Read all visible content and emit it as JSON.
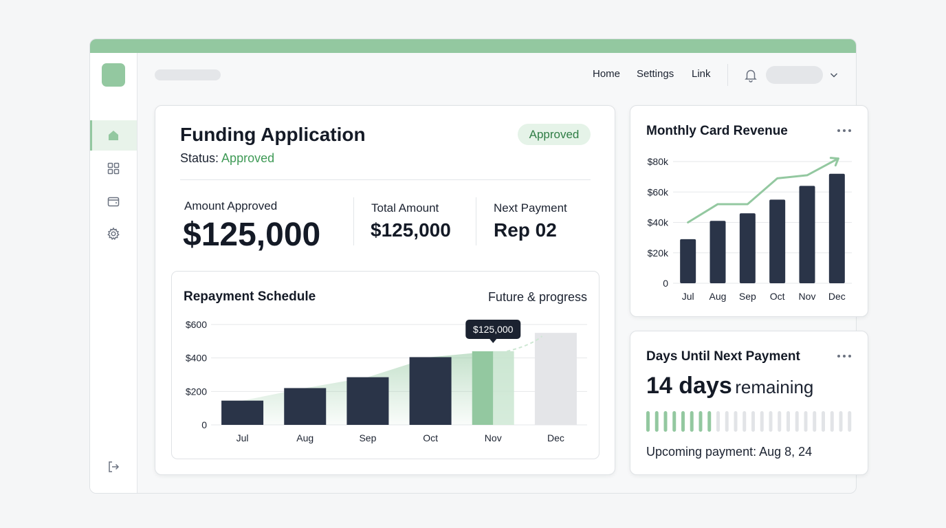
{
  "header": {
    "nav": [
      "Home",
      "Settings",
      "Link"
    ]
  },
  "sidebar": {
    "items": [
      {
        "icon": "home-icon",
        "active": true
      },
      {
        "icon": "grid-icon",
        "active": false
      },
      {
        "icon": "wallet-icon",
        "active": false
      },
      {
        "icon": "gear-icon",
        "active": false
      }
    ],
    "logout_icon": "logout-icon"
  },
  "colors": {
    "accent": "#93c8a0",
    "accent_text": "#3f9a56",
    "bar_dark": "#2a3448",
    "bar_future": "#e4e5e8"
  },
  "funding": {
    "title": "Funding Application",
    "status_label": "Status:",
    "status_value": "Approved",
    "badge": "Approved",
    "amount_label": "Amount Approved",
    "amount_value": "$125,000",
    "total_label": "Total Amount",
    "total_value": "$125,000",
    "next_label": "Next Payment",
    "next_value": "Rep 02"
  },
  "repayment": {
    "title": "Repayment Schedule",
    "subtitle": "Future & progress",
    "tooltip": "$125,000"
  },
  "revenue": {
    "title": "Monthly Card Revenue"
  },
  "days": {
    "title": "Days Until Next Payment",
    "count": "14 days",
    "suffix": "remaining",
    "progress_filled": 8,
    "progress_total": 24,
    "upcoming": "Upcoming payment: Aug 8, 24"
  },
  "chart_data": [
    {
      "type": "bar",
      "title": "Repayment Schedule",
      "categories": [
        "Jul",
        "Aug",
        "Sep",
        "Oct",
        "Nov",
        "Dec"
      ],
      "values": [
        145,
        220,
        285,
        405,
        440,
        550
      ],
      "bar_state": [
        "paid",
        "paid",
        "paid",
        "paid",
        "current",
        "future"
      ],
      "yticks": [
        "0",
        "$200",
        "$400",
        "$600"
      ],
      "ylim": [
        0,
        600
      ],
      "trend": [
        145,
        220,
        285,
        405,
        440,
        475,
        550
      ],
      "grid": true
    },
    {
      "type": "bar",
      "title": "Monthly Card Revenue",
      "categories": [
        "Jul",
        "Aug",
        "Sep",
        "Oct",
        "Nov",
        "Dec"
      ],
      "values": [
        29,
        41,
        46,
        55,
        64,
        72
      ],
      "yticks": [
        "0",
        "$20k",
        "$40k",
        "$60k",
        "$80k"
      ],
      "ylim": [
        0,
        80
      ],
      "trend": [
        40,
        52,
        52,
        69,
        71,
        82
      ],
      "grid": true
    }
  ]
}
